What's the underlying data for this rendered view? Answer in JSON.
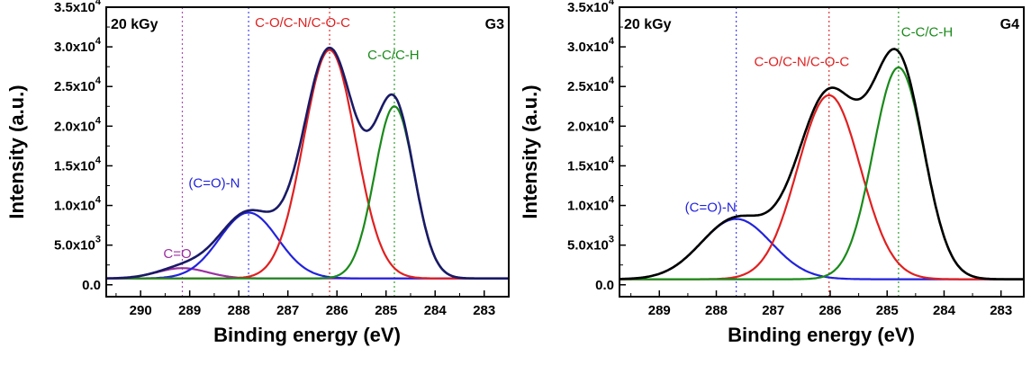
{
  "chart_data": [
    {
      "type": "line",
      "title": "",
      "sample_label": "G3",
      "dose_label": "20 kGy",
      "xlabel": "Binding energy (eV)",
      "ylabel": "Intensity (a.u.)",
      "xlim": [
        290.7,
        282.5
      ],
      "ylim": [
        -1500,
        35000
      ],
      "x_ticks": [
        290,
        289,
        288,
        287,
        286,
        285,
        284,
        283
      ],
      "x_tick_labels": [
        "290",
        "289",
        "288",
        "287",
        "286",
        "285",
        "284",
        "283"
      ],
      "y_ticks": [
        0,
        5000,
        10000,
        15000,
        20000,
        25000,
        30000,
        35000
      ],
      "y_tick_labels": [
        {
          "mantissa": "0.0",
          "exponent": ""
        },
        {
          "mantissa": "5.0x10",
          "exponent": "3"
        },
        {
          "mantissa": "1.0x10",
          "exponent": "4"
        },
        {
          "mantissa": "1.5x10",
          "exponent": "4"
        },
        {
          "mantissa": "2.0x10",
          "exponent": "4"
        },
        {
          "mantissa": "2.5x10",
          "exponent": "4"
        },
        {
          "mantissa": "3.0x10",
          "exponent": "4"
        },
        {
          "mantissa": "3.5x10",
          "exponent": "4"
        }
      ],
      "baseline": 800,
      "envelope_color": "#1a1a66",
      "peaks": [
        {
          "name": "C=O",
          "center": 289.15,
          "height": 1300,
          "fwhm": 1.2,
          "color": "#9b30a0",
          "marker_color": "#b04ab8",
          "label_x": 289.25,
          "label_y": 3400
        },
        {
          "name": "(C=O)-N",
          "center": 287.8,
          "height": 8300,
          "fwhm": 1.4,
          "color": "#2222dd",
          "marker_color": "#4444ee",
          "label_x": 288.5,
          "label_y": 12300
        },
        {
          "name": "C-O/C-N/C-O-C",
          "center": 286.15,
          "height": 28800,
          "fwhm": 1.25,
          "color": "#e02020",
          "marker_color": "#e03030",
          "label_x": 286.7,
          "label_y": 32500
        },
        {
          "name": "C-C/C-H",
          "center": 284.83,
          "height": 21700,
          "fwhm": 0.95,
          "color": "#1a8a1a",
          "marker_color": "#2ca02c",
          "label_x": 284.85,
          "label_y": 28400
        }
      ]
    },
    {
      "type": "line",
      "title": "",
      "sample_label": "G4",
      "dose_label": "20 kGy",
      "xlabel": "Binding energy (eV)",
      "ylabel": "Intensity (a.u.)",
      "xlim": [
        289.7,
        282.6
      ],
      "ylim": [
        -1500,
        35000
      ],
      "x_ticks": [
        289,
        288,
        287,
        286,
        285,
        284,
        283
      ],
      "x_tick_labels": [
        "289",
        "288",
        "287",
        "286",
        "285",
        "284",
        "283"
      ],
      "y_ticks": [
        0,
        5000,
        10000,
        15000,
        20000,
        25000,
        30000,
        35000
      ],
      "y_tick_labels": [
        {
          "mantissa": "0.0",
          "exponent": ""
        },
        {
          "mantissa": "5.0x10",
          "exponent": "3"
        },
        {
          "mantissa": "1.0x10",
          "exponent": "4"
        },
        {
          "mantissa": "1.5x10",
          "exponent": "4"
        },
        {
          "mantissa": "2.0x10",
          "exponent": "4"
        },
        {
          "mantissa": "2.5x10",
          "exponent": "4"
        },
        {
          "mantissa": "3.0x10",
          "exponent": "4"
        },
        {
          "mantissa": "3.5x10",
          "exponent": "4"
        }
      ],
      "baseline": 700,
      "envelope_color": "#000000",
      "peaks": [
        {
          "name": "(C=O)-N",
          "center": 287.65,
          "height": 7600,
          "fwhm": 1.45,
          "color": "#2222dd",
          "marker_color": "#4444ee",
          "label_x": 288.1,
          "label_y": 9200
        },
        {
          "name": "C-O/C-N/C-O-C",
          "center": 286.02,
          "height": 23200,
          "fwhm": 1.3,
          "color": "#e02020",
          "marker_color": "#e03030",
          "label_x": 286.5,
          "label_y": 27600
        },
        {
          "name": "C-C/C-H",
          "center": 284.8,
          "height": 26700,
          "fwhm": 1.05,
          "color": "#1a8a1a",
          "marker_color": "#2ca02c",
          "label_x": 284.3,
          "label_y": 31300
        }
      ]
    }
  ]
}
